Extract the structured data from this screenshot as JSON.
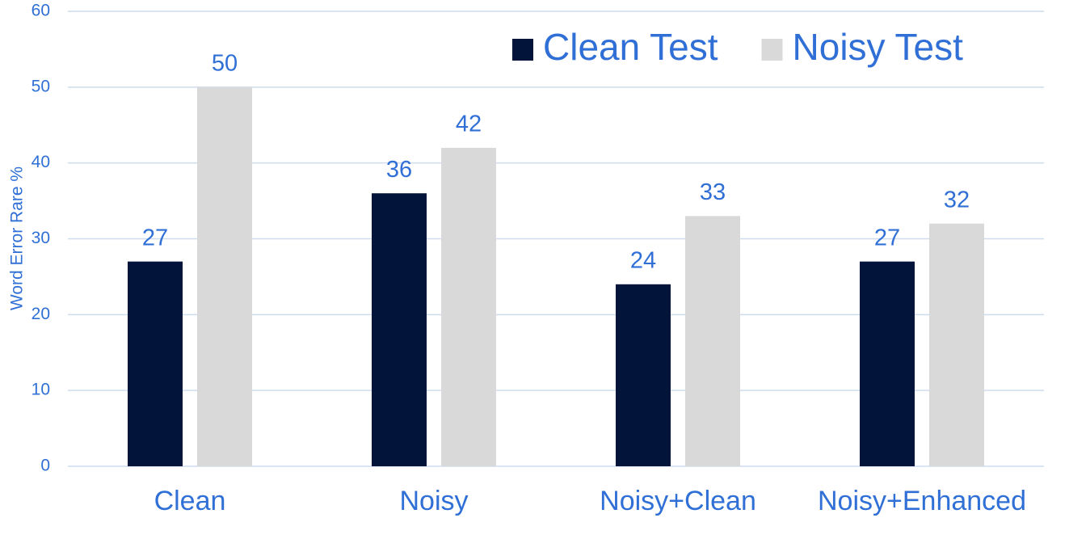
{
  "chart_data": {
    "type": "bar",
    "y_label": "Word Error Rare %",
    "categories": [
      "Clean",
      "Noisy",
      "Noisy+Clean",
      "Noisy+Enhanced"
    ],
    "series": [
      {
        "name": "Clean Test",
        "color": "#021439",
        "values": [
          27,
          36,
          24,
          27
        ]
      },
      {
        "name": "Noisy Test",
        "color": "#d9d9d9",
        "values": [
          50,
          42,
          33,
          32
        ]
      }
    ],
    "ylim": [
      0,
      60
    ],
    "yticks": [
      0,
      10,
      20,
      30,
      40,
      50,
      60
    ],
    "grid": true,
    "legend": "top-right"
  }
}
